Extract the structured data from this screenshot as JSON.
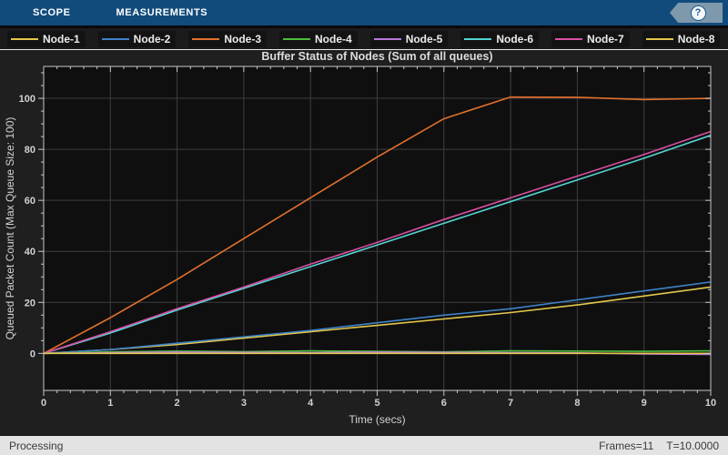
{
  "toolbar": {
    "tabs": [
      {
        "label": "SCOPE"
      },
      {
        "label": "MEASUREMENTS"
      }
    ],
    "help_label": "?"
  },
  "status_bar": {
    "status": "Processing",
    "frames": "Frames=11",
    "time": "T=10.0000"
  },
  "colors": {
    "toolbar_blue": "#114b7c",
    "plot_background": "#0f0f0f",
    "grid": "#3e3e3e",
    "axis": "#c7c7c7",
    "tick_label": "#d2d2d2",
    "title_text": "#dcdcdc"
  },
  "chart_data": {
    "type": "line",
    "title": "Buffer Status of Nodes (Sum of all queues)",
    "xlabel": "Time (secs)",
    "ylabel": "Queued Packet Count (Max Queue Size: 100)",
    "xlim": [
      0,
      10
    ],
    "ylim_display": [
      -14.5,
      112.5
    ],
    "xticks": [
      0,
      1,
      2,
      3,
      4,
      5,
      6,
      7,
      8,
      9,
      10
    ],
    "yticks": [
      0,
      20,
      40,
      60,
      80,
      100
    ],
    "x_minor_step": 0.2,
    "y_minor_step": 5,
    "grid": true,
    "legend_position": "top",
    "x": [
      0,
      1,
      2,
      3,
      4,
      5,
      6,
      7,
      8,
      9,
      10
    ],
    "series": [
      {
        "name": "Node-1",
        "color": "#e3c84c",
        "values": [
          0,
          1.5,
          3.5,
          6,
          8.5,
          11,
          13.5,
          16,
          19,
          22.5,
          26
        ]
      },
      {
        "name": "Node-2",
        "color": "#3e82c8",
        "values": [
          0,
          1.5,
          4,
          6.5,
          9,
          12,
          15,
          17.5,
          21,
          24.5,
          28
        ]
      },
      {
        "name": "Node-3",
        "color": "#e2702c",
        "values": [
          0,
          14,
          29,
          45,
          61,
          77,
          92,
          100.5,
          100.4,
          99.5,
          100
        ]
      },
      {
        "name": "Node-4",
        "color": "#4dbd3c",
        "values": [
          0,
          0.6,
          0.9,
          0.7,
          1.0,
          0.8,
          0.6,
          1.0,
          0.9,
          0.8,
          1.0
        ]
      },
      {
        "name": "Node-5",
        "color": "#b678dd",
        "values": [
          0,
          0.3,
          0.5,
          0.4,
          0.3,
          0.5,
          0.4,
          0.3,
          0.2,
          -0.2,
          -0.4
        ]
      },
      {
        "name": "Node-6",
        "color": "#53d4d3",
        "values": [
          0,
          8,
          17,
          25.5,
          34,
          42.5,
          51,
          59.5,
          68,
          76.5,
          85.5
        ]
      },
      {
        "name": "Node-7",
        "color": "#da4fa5",
        "values": [
          0,
          8.5,
          17.5,
          26,
          35,
          43.5,
          52.5,
          61,
          69.5,
          78,
          87
        ]
      },
      {
        "name": "Node-8",
        "color": "#e3c84c",
        "values": [
          0,
          0,
          0,
          0,
          0,
          0,
          0,
          0,
          0,
          0,
          0
        ]
      }
    ]
  }
}
